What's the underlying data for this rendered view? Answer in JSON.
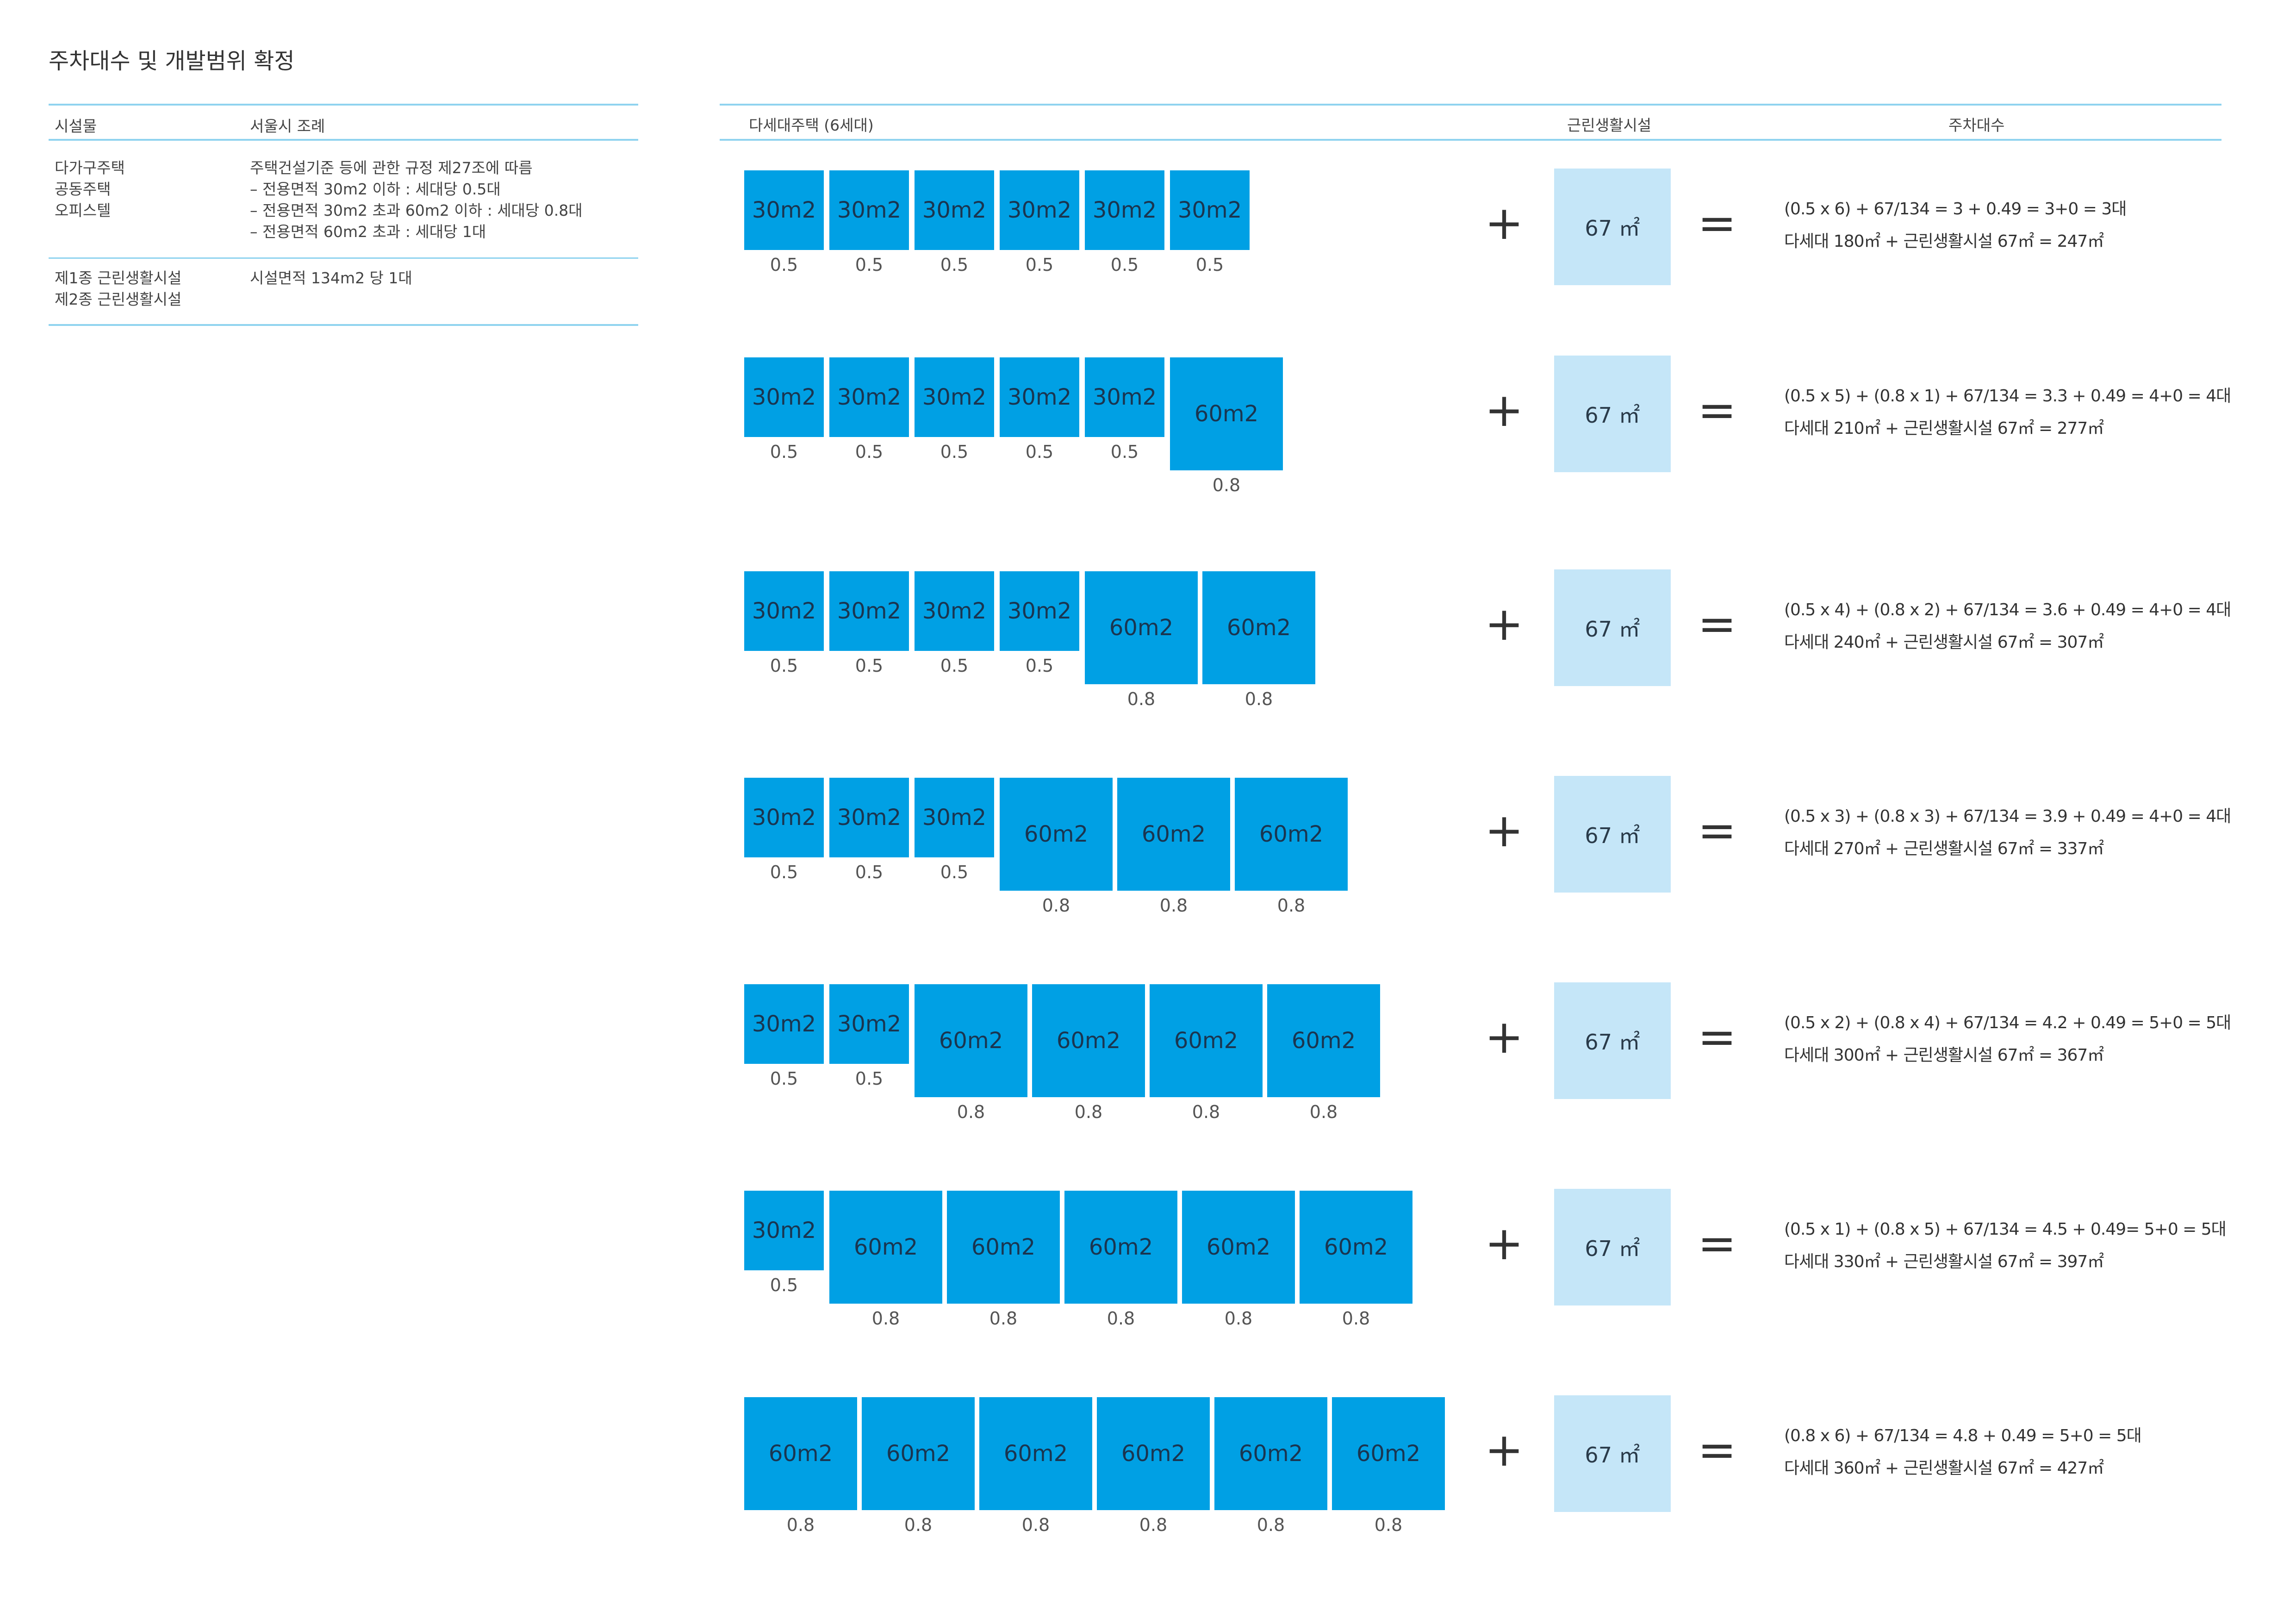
{
  "title": "주차대수 및 개발범위 확정",
  "regulation_table": {
    "col_facility": "시설물",
    "col_ordinance": "서울시 조례",
    "rows": [
      {
        "facility": "다가구주택\n공동주택\n오피스텔",
        "rule": "주택건설기준 등에 관한 규정 제27조에 따름\n– 전용면적 30m2 이하 : 세대당 0.5대\n– 전용면적 30m2 초과 60m2 이하 : 세대당 0.8대\n– 전용면적 60m2 초과 : 세대당 1대"
      },
      {
        "facility": "제1종 근린생활시설\n제2종 근린생활시설",
        "rule": "시설면적 134m2 당 1대"
      }
    ]
  },
  "diagram_headers": {
    "housing": "다세대주택 (6세대)",
    "neighborhood": "근린생활시설",
    "parking": "주차대수"
  },
  "unit_labels": {
    "small": "30m2",
    "large": "60m2"
  },
  "factor_labels": {
    "small": "0.5",
    "large": "0.8"
  },
  "operators": {
    "plus": "+",
    "equals": "="
  },
  "neighborhood_label": "67 ㎡",
  "colors": {
    "unit_fill": "#00a0e4",
    "neighborhood_fill": "#c5e6f8",
    "rule_line": "#8fd3ef"
  },
  "scenarios": [
    {
      "small_units": 6,
      "large_units": 0,
      "formula": "(0.5 x 6) + 67/134 = 3 + 0.49 = 3+0 = 3대",
      "area_summary": "다세대 180㎡ + 근린생활시설 67㎡ = 247㎡"
    },
    {
      "small_units": 5,
      "large_units": 1,
      "formula": "(0.5 x 5) + (0.8 x 1) + 67/134 = 3.3 + 0.49 = 4+0 = 4대",
      "area_summary": "다세대 210㎡ + 근린생활시설 67㎡ = 277㎡"
    },
    {
      "small_units": 4,
      "large_units": 2,
      "formula": "(0.5 x 4) + (0.8 x 2) +  67/134 = 3.6 + 0.49 = 4+0 = 4대",
      "area_summary": "다세대 240㎡ + 근린생활시설 67㎡ = 307㎡"
    },
    {
      "small_units": 3,
      "large_units": 3,
      "formula": "(0.5 x 3) + (0.8 x 3) +  67/134 = 3.9 + 0.49 = 4+0 = 4대",
      "area_summary": "다세대 270㎡ + 근린생활시설 67㎡ = 337㎡"
    },
    {
      "small_units": 2,
      "large_units": 4,
      "formula": "(0.5 x 2) + (0.8 x 4) +  67/134 = 4.2 + 0.49 = 5+0 = 5대",
      "area_summary": "다세대 300㎡ + 근린생활시설 67㎡ = 367㎡"
    },
    {
      "small_units": 1,
      "large_units": 5,
      "formula": "(0.5 x 1) + (0.8 x 5) +  67/134 = 4.5 + 0.49= 5+0 = 5대",
      "area_summary": "다세대 330㎡ + 근린생활시설 67㎡ = 397㎡"
    },
    {
      "small_units": 0,
      "large_units": 6,
      "formula": "(0.8 x 6) +  67/134 = 4.8 + 0.49 = 5+0 = 5대",
      "area_summary": "다세대 360㎡ + 근린생활시설 67㎡ = 427㎡"
    }
  ]
}
